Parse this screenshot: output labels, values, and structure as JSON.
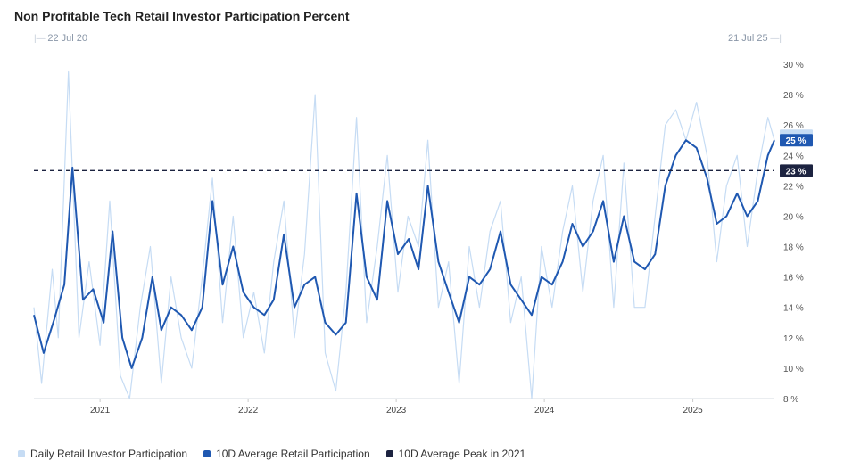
{
  "title": "Non Profitable Tech Retail Investor Participation Percent",
  "range": {
    "start": "22 Jul 20",
    "end": "21 Jul 25"
  },
  "legend": [
    {
      "label": "Daily Retail Investor Participation",
      "color": "#c6dcf4"
    },
    {
      "label": "10D Average Retail Participation",
      "color": "#1f58b1"
    },
    {
      "label": "10D Average Peak in 2021",
      "color": "#1c2340"
    }
  ],
  "badges": {
    "avg": "25 %",
    "peak": "23 %",
    "daily_color": "#c6dcf4",
    "avg_color": "#1f58b1",
    "peak_color": "#1c2340"
  },
  "chart_data": {
    "type": "line",
    "title": "Non Profitable Tech Retail Investor Participation Percent",
    "x_range": [
      "2020-07-22",
      "2025-07-21"
    ],
    "xticks": [
      "2021",
      "2022",
      "2023",
      "2024",
      "2025"
    ],
    "ylim": [
      8,
      30
    ],
    "yticks": [
      "8 %",
      "10 %",
      "12 %",
      "14 %",
      "16 %",
      "18 %",
      "20 %",
      "22 %",
      "24 %",
      "26 %",
      "28 %",
      "30 %"
    ],
    "ytick_values": [
      8,
      10,
      12,
      14,
      16,
      18,
      20,
      22,
      24,
      26,
      28,
      30
    ],
    "reference_line": {
      "name": "10D Average Peak in 2021",
      "value": 23,
      "style": "dashed"
    },
    "series": [
      {
        "name": "10D Average Retail Participation",
        "x": [
          "2020-07-22",
          "2020-08-15",
          "2020-09-10",
          "2020-10-05",
          "2020-10-25",
          "2020-11-20",
          "2020-12-15",
          "2021-01-10",
          "2021-02-01",
          "2021-02-25",
          "2021-03-20",
          "2021-04-15",
          "2021-05-10",
          "2021-06-01",
          "2021-06-25",
          "2021-07-20",
          "2021-08-15",
          "2021-09-10",
          "2021-10-05",
          "2021-10-30",
          "2021-11-25",
          "2021-12-20",
          "2022-01-15",
          "2022-02-10",
          "2022-03-05",
          "2022-03-30",
          "2022-04-25",
          "2022-05-20",
          "2022-06-15",
          "2022-07-10",
          "2022-08-05",
          "2022-08-30",
          "2022-09-25",
          "2022-10-20",
          "2022-11-15",
          "2022-12-10",
          "2023-01-05",
          "2023-02-01",
          "2023-02-25",
          "2023-03-20",
          "2023-04-15",
          "2023-05-10",
          "2023-06-05",
          "2023-06-30",
          "2023-07-25",
          "2023-08-20",
          "2023-09-15",
          "2023-10-10",
          "2023-11-05",
          "2023-12-01",
          "2023-12-25",
          "2024-01-20",
          "2024-02-15",
          "2024-03-10",
          "2024-04-05",
          "2024-04-30",
          "2024-05-25",
          "2024-06-20",
          "2024-07-15",
          "2024-08-10",
          "2024-09-05",
          "2024-09-30",
          "2024-10-25",
          "2024-11-20",
          "2024-12-15",
          "2025-01-10",
          "2025-02-05",
          "2025-03-01",
          "2025-03-25",
          "2025-04-20",
          "2025-05-15",
          "2025-06-10",
          "2025-07-05",
          "2025-07-21"
        ],
        "values": [
          13.5,
          11.0,
          13.2,
          15.5,
          23.2,
          14.5,
          15.2,
          13.0,
          19.0,
          12.0,
          10.0,
          12.0,
          16.0,
          12.5,
          14.0,
          13.5,
          12.5,
          14.0,
          21.0,
          15.5,
          18.0,
          15.0,
          14.0,
          13.5,
          14.5,
          18.8,
          14.0,
          15.5,
          16.0,
          13.0,
          12.2,
          13.0,
          21.5,
          16.0,
          14.5,
          21.0,
          17.5,
          18.5,
          16.5,
          22.0,
          17.0,
          15.0,
          13.0,
          16.0,
          15.5,
          16.5,
          19.0,
          15.5,
          14.5,
          13.5,
          16.0,
          15.5,
          17.0,
          19.5,
          18.0,
          19.0,
          21.0,
          17.0,
          20.0,
          17.0,
          16.5,
          17.5,
          22.0,
          24.0,
          25.0,
          24.5,
          22.5,
          19.5,
          20.0,
          21.5,
          20.0,
          21.0,
          24.0,
          25.0
        ]
      },
      {
        "name": "Daily Retail Investor Participation",
        "x": [
          "2020-07-22",
          "2020-08-10",
          "2020-09-05",
          "2020-09-20",
          "2020-10-15",
          "2020-11-10",
          "2020-12-05",
          "2021-01-01",
          "2021-01-25",
          "2021-02-20",
          "2021-03-15",
          "2021-04-10",
          "2021-05-05",
          "2021-06-01",
          "2021-06-25",
          "2021-07-20",
          "2021-08-15",
          "2021-09-10",
          "2021-10-05",
          "2021-10-30",
          "2021-11-25",
          "2021-12-20",
          "2022-01-15",
          "2022-02-10",
          "2022-03-05",
          "2022-03-30",
          "2022-04-25",
          "2022-05-20",
          "2022-06-15",
          "2022-07-10",
          "2022-08-05",
          "2022-08-30",
          "2022-09-25",
          "2022-10-20",
          "2022-11-15",
          "2022-12-10",
          "2023-01-05",
          "2023-01-30",
          "2023-02-25",
          "2023-03-20",
          "2023-04-15",
          "2023-05-10",
          "2023-06-05",
          "2023-06-30",
          "2023-07-25",
          "2023-08-20",
          "2023-09-15",
          "2023-10-10",
          "2023-11-05",
          "2023-12-01",
          "2023-12-25",
          "2024-01-20",
          "2024-02-15",
          "2024-03-10",
          "2024-04-05",
          "2024-04-30",
          "2024-05-25",
          "2024-06-20",
          "2024-07-15",
          "2024-08-10",
          "2024-09-05",
          "2024-09-30",
          "2024-10-25",
          "2024-11-20",
          "2024-12-15",
          "2025-01-10",
          "2025-02-05",
          "2025-03-01",
          "2025-03-25",
          "2025-04-20",
          "2025-05-15",
          "2025-06-10",
          "2025-07-05",
          "2025-07-21"
        ],
        "values": [
          14.0,
          9.0,
          16.5,
          12.0,
          29.5,
          12.0,
          17.0,
          11.5,
          21.0,
          9.5,
          8.0,
          14.0,
          18.0,
          9.0,
          16.0,
          12.0,
          10.0,
          16.0,
          22.5,
          13.0,
          20.0,
          12.0,
          15.0,
          11.0,
          17.0,
          21.0,
          12.0,
          17.5,
          28.0,
          11.0,
          8.5,
          15.0,
          26.5,
          13.0,
          18.0,
          24.0,
          15.0,
          20.0,
          18.0,
          25.0,
          14.0,
          17.0,
          9.0,
          18.0,
          14.0,
          19.0,
          21.0,
          13.0,
          16.0,
          8.0,
          18.0,
          14.0,
          19.0,
          22.0,
          15.0,
          21.0,
          24.0,
          14.0,
          23.5,
          14.0,
          14.0,
          20.0,
          26.0,
          27.0,
          25.0,
          27.5,
          24.0,
          17.0,
          22.0,
          24.0,
          18.0,
          23.0,
          26.5,
          25.0
        ]
      }
    ]
  }
}
